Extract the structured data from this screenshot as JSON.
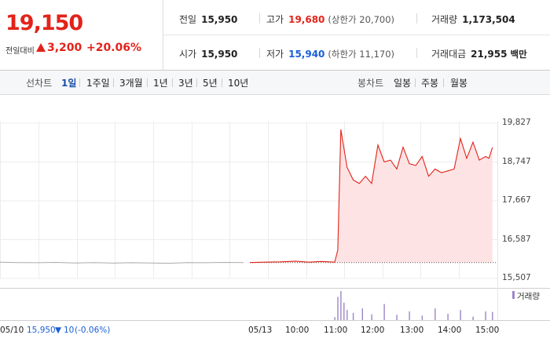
{
  "quote": {
    "price": "19,150",
    "change_label": "전일대비",
    "change_value": "3,200",
    "change_pct": "+20.06%"
  },
  "stats": {
    "prev_close_label": "전일",
    "prev_close": "15,950",
    "high_label": "고가",
    "high": "19,680",
    "upper_limit": "(상한가 20,700)",
    "volume_label": "거래량",
    "volume": "1,173,504",
    "open_label": "시가",
    "open": "15,950",
    "low_label": "저가",
    "low": "15,940",
    "lower_limit": "(하한가 11,170)",
    "amount_label": "거래대금",
    "amount": "21,955",
    "amount_unit": "백만"
  },
  "periods": {
    "line_label": "선차트",
    "line_items": [
      "1일",
      "1주일",
      "3개월",
      "1년",
      "3년",
      "5년",
      "10년"
    ],
    "selected": "1일",
    "candle_label": "봉차트",
    "candle_items": [
      "일봉",
      "주봉",
      "월봉"
    ]
  },
  "footer": {
    "date": "05/10",
    "close": "15,950",
    "change": "10",
    "change_pct": "(-0.06%)"
  },
  "colors": {
    "up": "#e2231a",
    "down": "#1a5fd6",
    "area_fill": "#fde3e3",
    "volume": "#9c86c7"
  },
  "chart_data": {
    "type": "line",
    "yticks": [
      "19,827",
      "18,747",
      "17,667",
      "16,587",
      "15,507"
    ],
    "ylim": [
      15507,
      19827
    ],
    "xticks": [
      "05/10",
      "05/13",
      "10:00",
      "11:00",
      "12:00",
      "13:00",
      "14:00",
      "15:00"
    ],
    "reference_price": 15950,
    "series": [
      {
        "segment": "prev_day",
        "x": [
          "09:00",
          "09:30",
          "10:00",
          "10:30",
          "11:00",
          "11:30",
          "12:00",
          "12:30",
          "13:00",
          "13:30",
          "14:00",
          "14:30",
          "15:00",
          "15:30"
        ],
        "values": [
          15960,
          15950,
          15945,
          15955,
          15940,
          15950,
          15935,
          15945,
          15940,
          15930,
          15950,
          15945,
          15955,
          15950
        ]
      },
      {
        "segment": "today",
        "x": [
          "09:00",
          "09:20",
          "09:40",
          "10:00",
          "10:20",
          "10:40",
          "11:00",
          "11:05",
          "11:10",
          "11:20",
          "11:30",
          "11:40",
          "11:50",
          "12:00",
          "12:10",
          "12:20",
          "12:30",
          "12:40",
          "12:50",
          "13:00",
          "13:10",
          "13:20",
          "13:30",
          "13:40",
          "13:50",
          "14:00",
          "14:10",
          "14:20",
          "14:30",
          "14:40",
          "14:50",
          "15:00",
          "15:10",
          "15:20"
        ],
        "values": [
          15950,
          15960,
          15970,
          15990,
          15960,
          15980,
          15960,
          16300,
          19650,
          18600,
          18250,
          18150,
          18350,
          18150,
          19220,
          18750,
          18800,
          18550,
          19160,
          18700,
          18650,
          18900,
          18350,
          18550,
          18450,
          18500,
          18550,
          19400,
          18850,
          19300,
          18800,
          18900,
          18850,
          19150
        ]
      }
    ],
    "volume_label": "거래량",
    "volume": {
      "x": [
        "11:00",
        "11:05",
        "11:10",
        "11:15",
        "11:20",
        "11:30",
        "11:45",
        "12:00",
        "12:20",
        "12:40",
        "13:00",
        "13:20",
        "13:40",
        "14:00",
        "14:20",
        "14:40",
        "15:00",
        "15:20"
      ],
      "values": [
        10,
        80,
        100,
        60,
        35,
        25,
        40,
        20,
        55,
        18,
        30,
        15,
        40,
        22,
        35,
        12,
        30,
        28
      ]
    }
  }
}
